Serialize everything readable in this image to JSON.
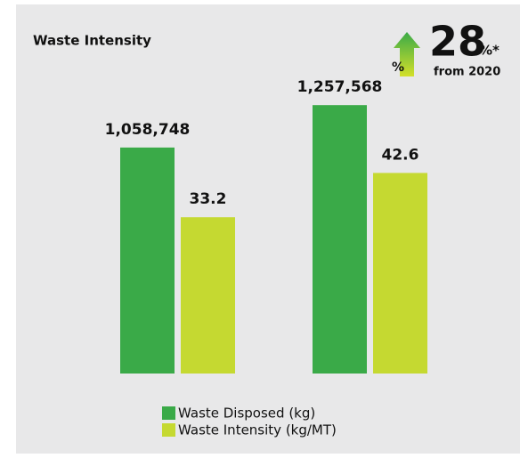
{
  "chart_data": {
    "type": "bar",
    "title": "Waste Intensity",
    "categories": [
      null,
      null
    ],
    "series": [
      {
        "name": "Waste Disposed (kg)",
        "color": "#3aaa48",
        "values": [
          1058748,
          1257568
        ],
        "value_labels": [
          "1,058,748",
          "1,257,568"
        ]
      },
      {
        "name": "Waste Intensity (kg/MT)",
        "color": "#c5d931",
        "values": [
          33.2,
          42.6
        ],
        "axis": "y2"
      }
    ],
    "ylim": [
      0,
      1500000
    ],
    "y2lim": [
      0,
      68
    ],
    "grid": false
  },
  "badge": {
    "value": 28,
    "unit": "%*",
    "note": "from 2020",
    "icon_label": "%"
  }
}
